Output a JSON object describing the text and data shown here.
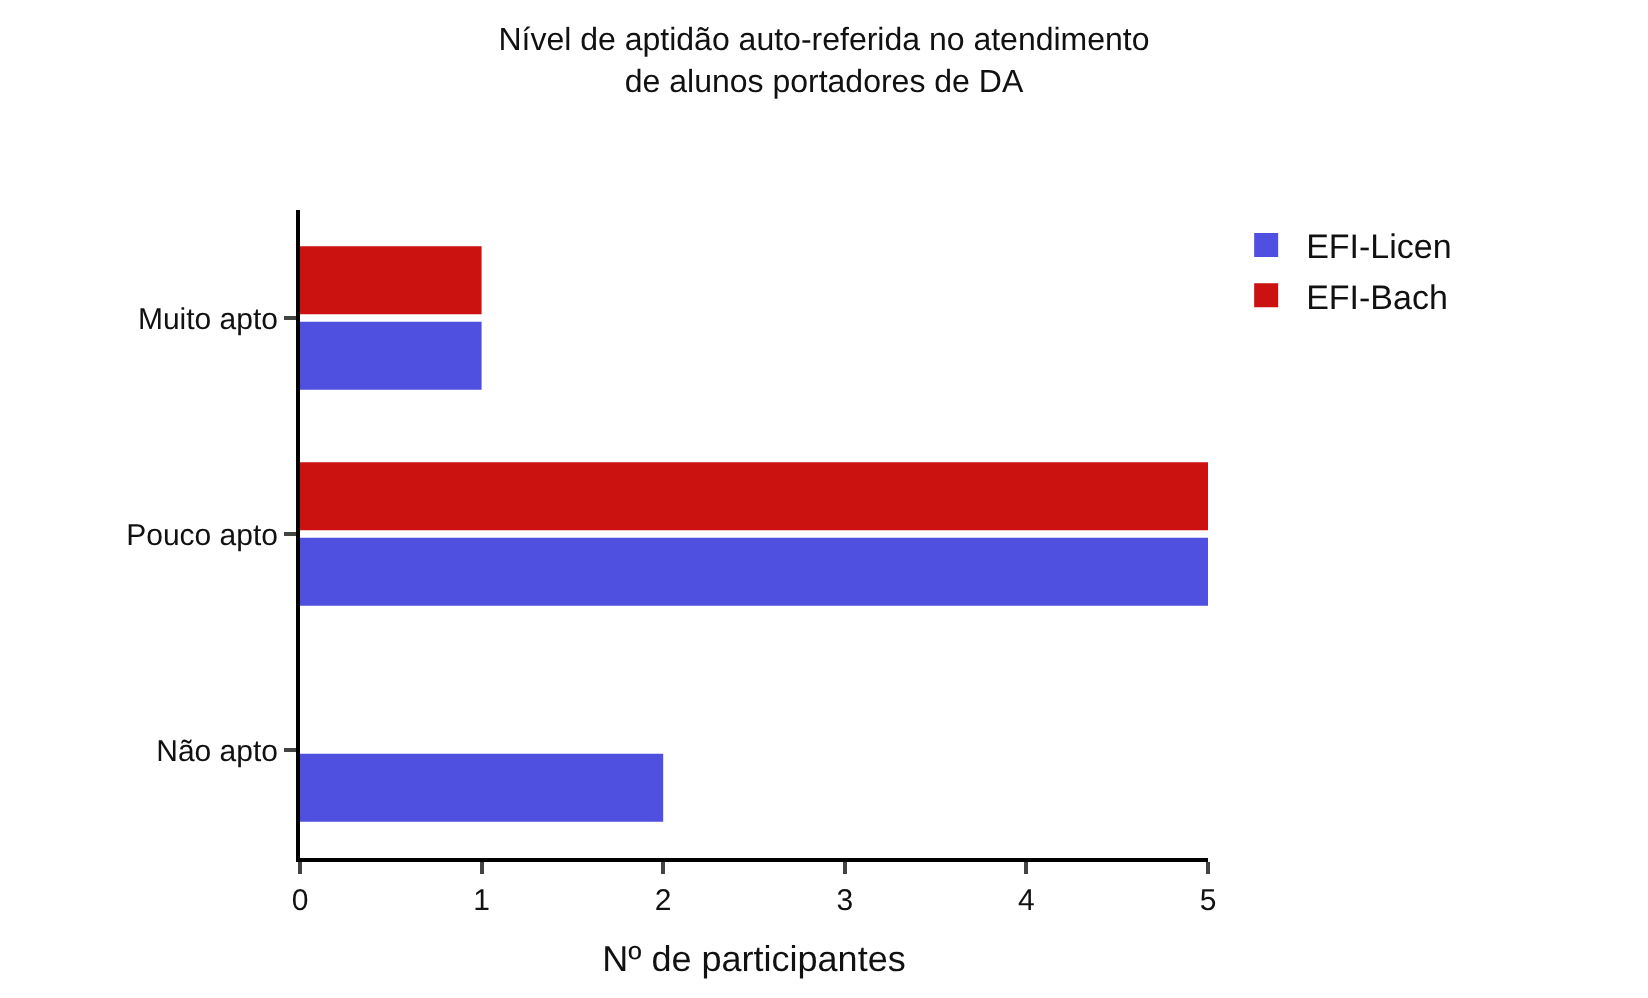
{
  "chart_data": {
    "type": "bar",
    "orientation": "horizontal",
    "title": "Nível de aptidão auto-referida no atendimento\nde alunos portadores de DA",
    "xlabel": "Nº de participantes",
    "categories": [
      "Muito apto",
      "Pouco apto",
      "Não apto"
    ],
    "series": [
      {
        "name": "EFI-Licen",
        "color": "#4f4fe0",
        "values": [
          1,
          5,
          2
        ]
      },
      {
        "name": "EFI-Bach",
        "color": "#cc1111",
        "values": [
          1,
          5,
          null
        ]
      }
    ],
    "xlim": [
      0,
      5
    ],
    "xticks": [
      0,
      1,
      2,
      3,
      4,
      5
    ],
    "legend": "top right"
  }
}
